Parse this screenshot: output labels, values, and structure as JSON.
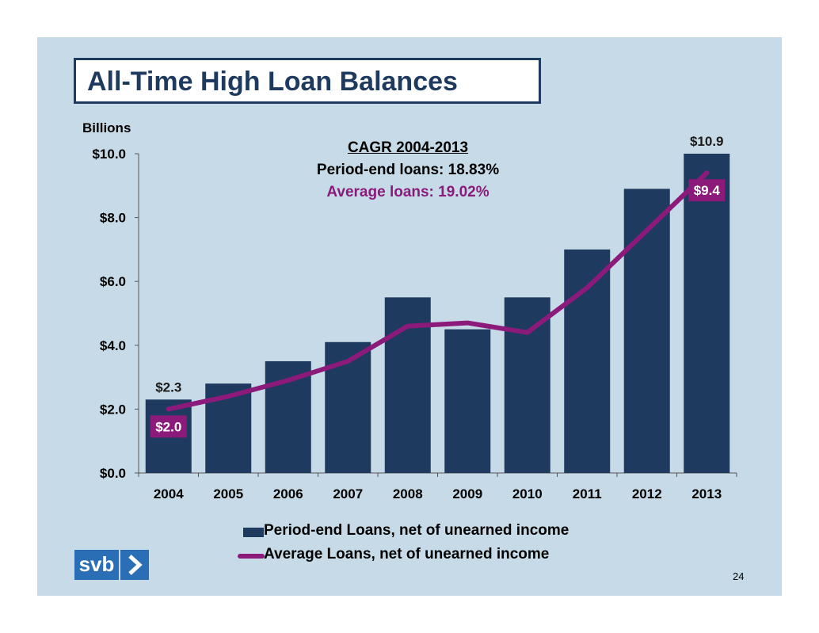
{
  "slide": {
    "title": "All-Time High Loan Balances",
    "page_number": "24",
    "logo_text": "svb"
  },
  "annotation": {
    "heading": "CAGR 2004-2013",
    "period_end": "Period-end loans: 18.83%",
    "average": "Average loans: 19.02%"
  },
  "colors": {
    "bar": "#1e3a5f",
    "line": "#8b1a7b",
    "background": "#c6dbe7",
    "title": "#1e3a5f",
    "logo": "#2a6fb5"
  },
  "chart_data": {
    "type": "bar",
    "units_label": "Billions",
    "categories": [
      "2004",
      "2005",
      "2006",
      "2007",
      "2008",
      "2009",
      "2010",
      "2011",
      "2012",
      "2013"
    ],
    "ylim": [
      0,
      10
    ],
    "yticks": [
      0,
      2,
      4,
      6,
      8,
      10
    ],
    "ytick_labels": [
      "$0.0",
      "$2.0",
      "$4.0",
      "$6.0",
      "$8.0",
      "$10.0"
    ],
    "series": [
      {
        "name": "Period-end Loans, net of unearned income",
        "type": "bar",
        "values": [
          2.3,
          2.8,
          3.5,
          4.1,
          5.5,
          4.5,
          5.5,
          7.0,
          8.9,
          10.9
        ]
      },
      {
        "name": "Average Loans, net of unearned income",
        "type": "line",
        "values": [
          2.0,
          2.4,
          2.9,
          3.5,
          4.6,
          4.7,
          4.4,
          5.8,
          7.6,
          9.4
        ]
      }
    ],
    "data_labels": [
      {
        "series": 0,
        "index": 0,
        "text": "$2.3"
      },
      {
        "series": 0,
        "index": 9,
        "text": "$10.9"
      },
      {
        "series": 1,
        "index": 0,
        "text": "$2.0"
      },
      {
        "series": 1,
        "index": 9,
        "text": "$9.4"
      }
    ],
    "legend_position": "bottom",
    "grid": false
  }
}
